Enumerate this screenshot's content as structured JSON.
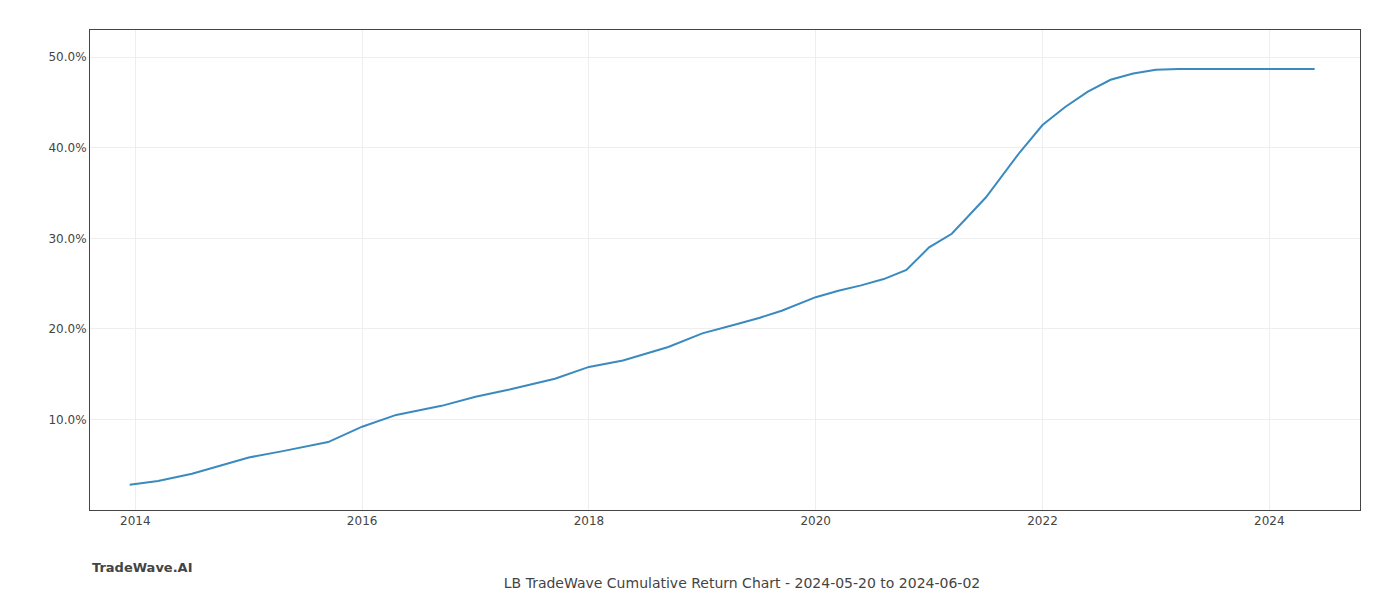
{
  "chart_data": {
    "type": "line",
    "title": "LB TradeWave Cumulative Return Chart - 2024-05-20 to 2024-06-02",
    "annotations": [
      "TradeWave.AI"
    ],
    "x": [
      2013.95,
      2014.2,
      2014.5,
      2015.0,
      2015.3,
      2015.7,
      2016.0,
      2016.3,
      2016.7,
      2017.0,
      2017.3,
      2017.7,
      2018.0,
      2018.3,
      2018.7,
      2019.0,
      2019.3,
      2019.5,
      2019.7,
      2020.0,
      2020.2,
      2020.4,
      2020.6,
      2020.8,
      2021.0,
      2021.2,
      2021.5,
      2021.8,
      2022.0,
      2022.2,
      2022.4,
      2022.6,
      2022.8,
      2023.0,
      2023.2,
      2023.4,
      2023.6,
      2023.8,
      2024.0,
      2024.2,
      2024.4
    ],
    "values": [
      2.8,
      3.2,
      4.0,
      5.8,
      6.5,
      7.5,
      9.2,
      10.5,
      11.5,
      12.5,
      13.3,
      14.5,
      15.8,
      16.5,
      18.0,
      19.5,
      20.5,
      21.2,
      22.0,
      23.5,
      24.2,
      24.8,
      25.5,
      26.5,
      29.0,
      30.5,
      34.5,
      39.5,
      42.5,
      44.5,
      46.2,
      47.5,
      48.2,
      48.6,
      48.7,
      48.7,
      48.7,
      48.7,
      48.7,
      48.7,
      48.7
    ],
    "color": "#3a8abf",
    "xlim": [
      2013.6,
      2024.8
    ],
    "ylim": [
      0,
      53
    ],
    "xticks": [
      2014,
      2016,
      2018,
      2020,
      2022,
      2024
    ],
    "yticks": [
      {
        "value": 10.0,
        "label": "10.0%"
      },
      {
        "value": 20.0,
        "label": "20.0%"
      },
      {
        "value": 30.0,
        "label": "30.0%"
      },
      {
        "value": 40.0,
        "label": "40.0%"
      },
      {
        "value": 50.0,
        "label": "50.0%"
      }
    ],
    "grid": true
  }
}
